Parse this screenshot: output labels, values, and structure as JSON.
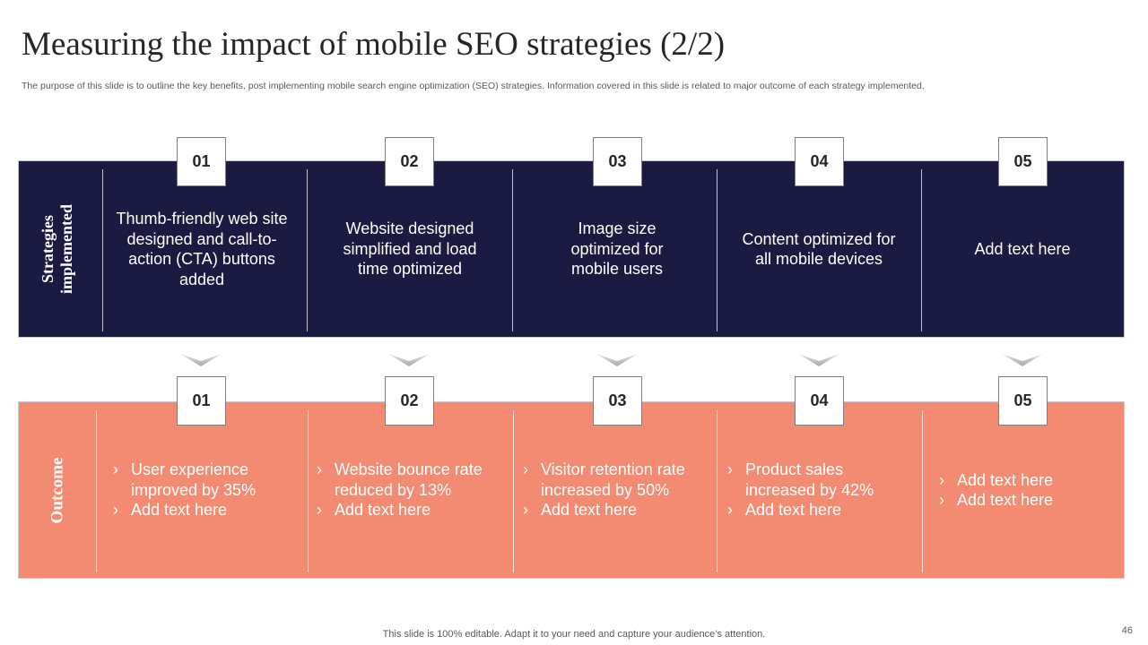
{
  "slide": {
    "title": "Measuring the impact of mobile SEO strategies (2/2)",
    "subtitle": "The purpose of this slide is to outline the key benefits, post implementing mobile search engine optimization (SEO) strategies. Information covered in this slide is related to major outcome of each strategy implemented.",
    "footer": "This slide is 100% editable. Adapt it to your need and capture your audience’s attention.",
    "page_number": "46"
  },
  "colors": {
    "navy": "#1b1a40",
    "coral": "#f28b71"
  },
  "strategies": {
    "label": "Strategies\nimplemented",
    "items": [
      {
        "number": "01",
        "text": "Thumb-friendly web site designed and call-to-action (CTA) buttons added"
      },
      {
        "number": "02",
        "text": "Website designed simplified and load time optimized"
      },
      {
        "number": "03",
        "text": "Image size optimized for mobile users"
      },
      {
        "number": "04",
        "text": "Content optimized for all mobile devices"
      },
      {
        "number": "05",
        "text": "Add text here"
      }
    ]
  },
  "outcome": {
    "label": "Outcome",
    "items": [
      {
        "number": "01",
        "bullets": [
          "User experience improved by 35%",
          "Add text here"
        ]
      },
      {
        "number": "02",
        "bullets": [
          "Website bounce rate reduced by 13%",
          "Add text here"
        ]
      },
      {
        "number": "03",
        "bullets": [
          "Visitor retention rate increased by 50%",
          "Add text here"
        ]
      },
      {
        "number": "04",
        "bullets": [
          "Product sales increased by 42%",
          "Add text here"
        ]
      },
      {
        "number": "05",
        "bullets": [
          "Add text here",
          "Add text here"
        ]
      }
    ]
  }
}
